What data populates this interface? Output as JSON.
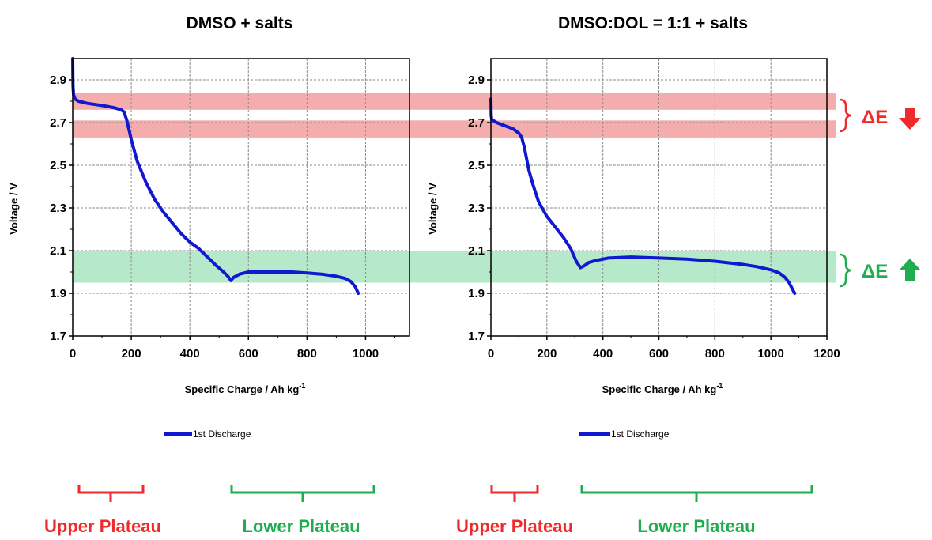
{
  "chart_data": [
    {
      "type": "line",
      "title": "DMSO + salts",
      "xlabel": "Specific Charge / Ah kg",
      "xlabel_sup": "-1",
      "ylabel": "Voltage / V",
      "xlim": [
        0,
        1150
      ],
      "ylim": [
        1.7,
        3.0
      ],
      "xticks": [
        "0",
        "200",
        "400",
        "600",
        "800",
        "1000"
      ],
      "yticks": [
        "1.7",
        "1.9",
        "2.1",
        "2.3",
        "2.5",
        "2.7",
        "2.9"
      ],
      "grid": true,
      "legend": "bottom",
      "series": [
        {
          "name": "1st Discharge",
          "x": [
            0,
            0.5,
            1,
            3,
            8,
            20,
            50,
            100,
            140,
            165,
            175,
            185,
            200,
            220,
            250,
            280,
            310,
            340,
            370,
            400,
            430,
            460,
            490,
            515,
            530,
            540,
            550,
            570,
            600,
            650,
            700,
            750,
            800,
            850,
            900,
            930,
            950,
            965,
            975
          ],
          "y": [
            3.0,
            2.92,
            2.87,
            2.83,
            2.81,
            2.8,
            2.79,
            2.78,
            2.77,
            2.76,
            2.75,
            2.71,
            2.62,
            2.52,
            2.42,
            2.34,
            2.28,
            2.23,
            2.18,
            2.14,
            2.11,
            2.07,
            2.03,
            2.0,
            1.98,
            1.96,
            1.975,
            1.99,
            2.0,
            2.0,
            2.0,
            2.0,
            1.995,
            1.99,
            1.98,
            1.97,
            1.955,
            1.93,
            1.9
          ]
        }
      ]
    },
    {
      "type": "line",
      "title": "DMSO:DOL = 1:1 + salts",
      "xlabel": "Specific Charge / Ah kg",
      "xlabel_sup": "-1",
      "ylabel": "Voltage / V",
      "xlim": [
        0,
        1200
      ],
      "ylim": [
        1.7,
        3.0
      ],
      "xticks": [
        "0",
        "200",
        "400",
        "600",
        "800",
        "1000",
        "1200"
      ],
      "yticks": [
        "1.7",
        "1.9",
        "2.1",
        "2.3",
        "2.5",
        "2.7",
        "2.9"
      ],
      "grid": true,
      "legend": "bottom",
      "series": [
        {
          "name": "1st Discharge",
          "x": [
            0,
            0.5,
            1,
            3,
            8,
            20,
            40,
            60,
            80,
            100,
            110,
            120,
            135,
            150,
            170,
            200,
            230,
            260,
            285,
            305,
            320,
            335,
            350,
            380,
            420,
            500,
            600,
            700,
            800,
            900,
            950,
            1000,
            1030,
            1050,
            1065,
            1075,
            1085
          ],
          "y": [
            2.81,
            2.76,
            2.73,
            2.715,
            2.71,
            2.7,
            2.69,
            2.68,
            2.67,
            2.65,
            2.63,
            2.58,
            2.48,
            2.41,
            2.33,
            2.26,
            2.21,
            2.16,
            2.11,
            2.05,
            2.02,
            2.03,
            2.045,
            2.055,
            2.065,
            2.07,
            2.065,
            2.06,
            2.05,
            2.035,
            2.025,
            2.01,
            1.995,
            1.975,
            1.95,
            1.925,
            1.9
          ]
        }
      ]
    }
  ],
  "bands": {
    "upper_color": "#f08080",
    "lower_color": "#8fdcae",
    "upper": [
      [
        2.76,
        2.84
      ],
      [
        2.63,
        2.71
      ]
    ],
    "lower": [
      [
        2.02,
        2.1
      ],
      [
        1.95,
        2.02
      ]
    ]
  },
  "series_color": "#1018d0",
  "annotations": {
    "delta_upper": "ΔE",
    "delta_lower": "ΔE",
    "upper_color": "#ef2a2a",
    "lower_color": "#1fad4f",
    "upper_plateau": "Upper Plateau",
    "lower_plateau": "Lower Plateau",
    "delta_upper_icon": "arrow-down-icon",
    "delta_lower_icon": "arrow-up-icon"
  }
}
